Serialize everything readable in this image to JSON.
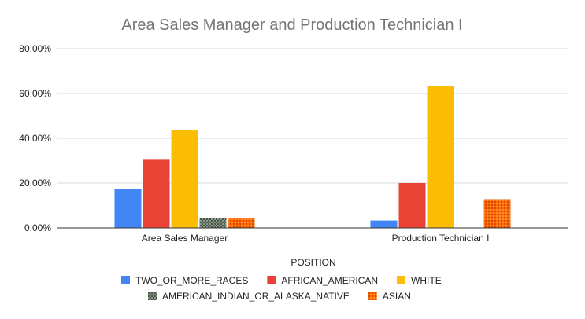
{
  "chart_data": {
    "type": "bar",
    "title": "Area Sales Manager and Production Technician I",
    "xlabel": "POSITION",
    "ylabel": "",
    "ylim": [
      0,
      80
    ],
    "y_ticks": [
      0,
      20,
      40,
      60,
      80
    ],
    "y_tick_labels": [
      "0.00%",
      "20.00%",
      "40.00%",
      "60.00%",
      "80.00%"
    ],
    "grid": true,
    "legend_position": "bottom",
    "categories": [
      "Area Sales Manager",
      "Production Technician I"
    ],
    "series": [
      {
        "name": "TWO_OR_MORE_RACES",
        "values": [
          17.4,
          3.3
        ],
        "color": "#4285F4",
        "pattern": "solid"
      },
      {
        "name": "AFRICAN_AMERICAN",
        "values": [
          30.4,
          20.0
        ],
        "color": "#EA4335",
        "pattern": "solid"
      },
      {
        "name": "WHITE",
        "values": [
          43.5,
          63.3
        ],
        "color": "#FBBC04",
        "pattern": "solid"
      },
      {
        "name": "AMERICAN_INDIAN_OR_ALASKA_NATIVE",
        "values": [
          4.3,
          0
        ],
        "color": "#6b7a6b",
        "pattern": "checker"
      },
      {
        "name": "ASIAN",
        "values": [
          4.3,
          12.8
        ],
        "color": "#FF6D01",
        "pattern": "dots"
      }
    ]
  }
}
